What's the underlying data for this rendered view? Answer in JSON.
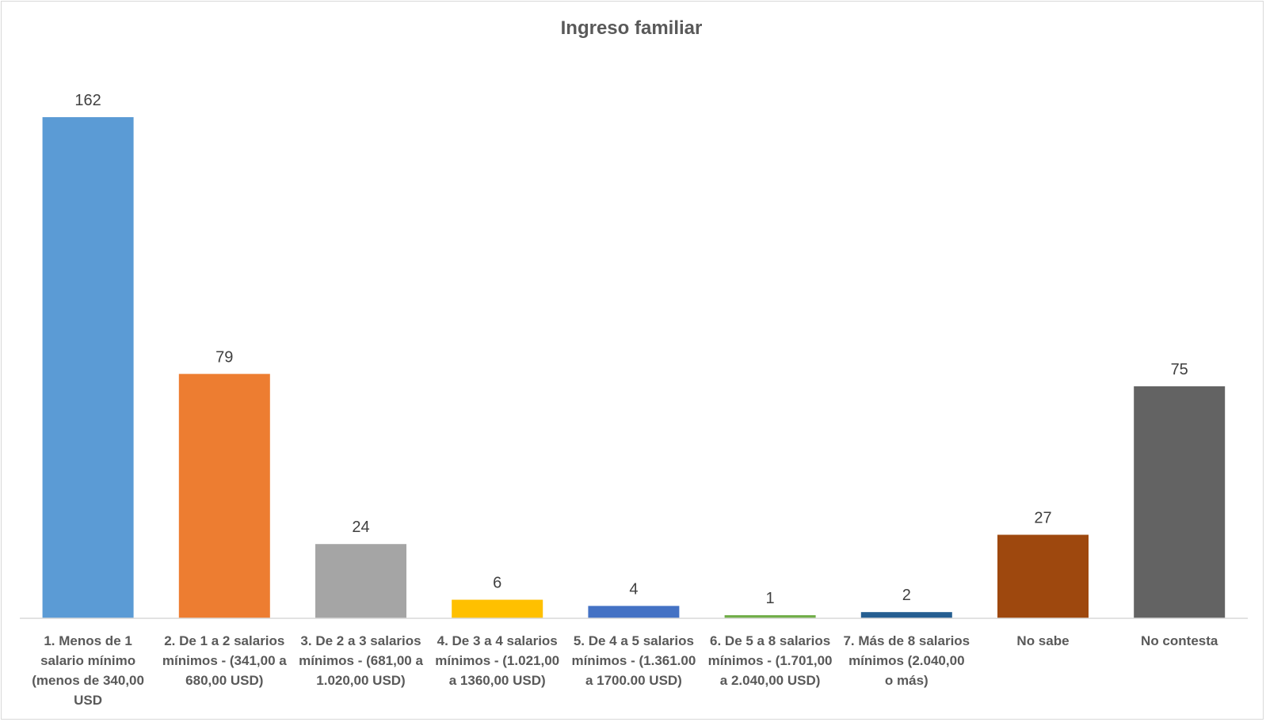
{
  "chart_data": {
    "type": "bar",
    "title": "Ingreso familiar",
    "xlabel": "",
    "ylabel": "",
    "ylim": [
      0,
      162
    ],
    "grid": false,
    "legend": "none",
    "categories": [
      [
        "1. Menos de 1",
        "salario mínimo",
        "(menos de 340,00",
        "USD"
      ],
      [
        "2. De 1 a 2 salarios",
        "mínimos - (341,00 a",
        "680,00 USD)"
      ],
      [
        "3. De 2 a 3 salarios",
        "mínimos - (681,00 a",
        "1.020,00 USD)"
      ],
      [
        "4. De 3 a 4 salarios",
        "mínimos - (1.021,00",
        "a 1360,00 USD)"
      ],
      [
        "5. De 4 a 5 salarios",
        "mínimos - (1.361.00",
        "a 1700.00 USD)"
      ],
      [
        "6. De 5 a 8 salarios",
        "mínimos - (1.701,00",
        "a 2.040,00 USD)"
      ],
      [
        "7. Más de 8 salarios",
        "mínimos (2.040,00",
        "o más)"
      ],
      [
        "No sabe"
      ],
      [
        "No contesta"
      ]
    ],
    "values": [
      162,
      79,
      24,
      6,
      4,
      1,
      2,
      27,
      75
    ],
    "colors": [
      "#5b9bd5",
      "#ed7d31",
      "#a5a5a5",
      "#ffc000",
      "#4472c4",
      "#70ad47",
      "#255e91",
      "#9e480e",
      "#636363"
    ]
  }
}
